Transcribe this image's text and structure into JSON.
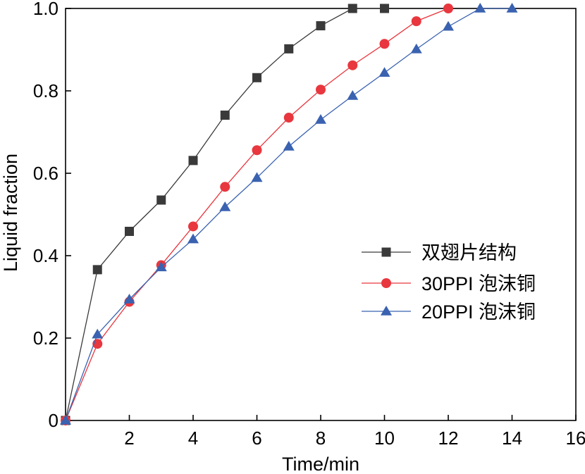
{
  "chart_data": {
    "type": "line",
    "title": "",
    "xlabel": "Time/min",
    "ylabel": "Liquid fraction",
    "xlim": [
      0,
      16
    ],
    "ylim": [
      0,
      1.0
    ],
    "xticks": [
      2,
      4,
      6,
      8,
      10,
      12,
      14,
      16
    ],
    "xtick_labels": [
      "2",
      "4",
      "6",
      "8",
      "10",
      "12",
      "14",
      "16"
    ],
    "yticks": [
      0,
      0.2,
      0.4,
      0.6,
      0.8,
      1.0
    ],
    "ytick_labels": [
      "0",
      "0.2",
      "0.4",
      "0.6",
      "0.8",
      "1.0"
    ],
    "grid": false,
    "legend_position": "center-right",
    "series": [
      {
        "name": "双翅片结构",
        "color": "#3a3a3a",
        "marker": "square",
        "x": [
          0,
          1,
          2,
          3,
          4,
          5,
          6,
          7,
          8,
          9,
          10
        ],
        "y": [
          0,
          0.366,
          0.459,
          0.535,
          0.631,
          0.741,
          0.832,
          0.902,
          0.958,
          1.0,
          1.0
        ]
      },
      {
        "name": "30PPI 泡沫铜",
        "color": "#e8373e",
        "marker": "circle",
        "x": [
          0,
          1,
          2,
          3,
          4,
          5,
          6,
          7,
          8,
          9,
          10,
          11,
          12
        ],
        "y": [
          0,
          0.186,
          0.288,
          0.377,
          0.471,
          0.567,
          0.656,
          0.735,
          0.803,
          0.862,
          0.914,
          0.969,
          1.0
        ]
      },
      {
        "name": "20PPI 泡沫铜",
        "color": "#3a62b0",
        "marker": "triangle",
        "x": [
          0,
          1,
          2,
          3,
          4,
          5,
          6,
          7,
          8,
          9,
          10,
          11,
          12,
          13,
          14
        ],
        "y": [
          0,
          0.209,
          0.294,
          0.372,
          0.44,
          0.518,
          0.589,
          0.665,
          0.73,
          0.788,
          0.844,
          0.901,
          0.956,
          1.0,
          1.0
        ]
      }
    ]
  }
}
